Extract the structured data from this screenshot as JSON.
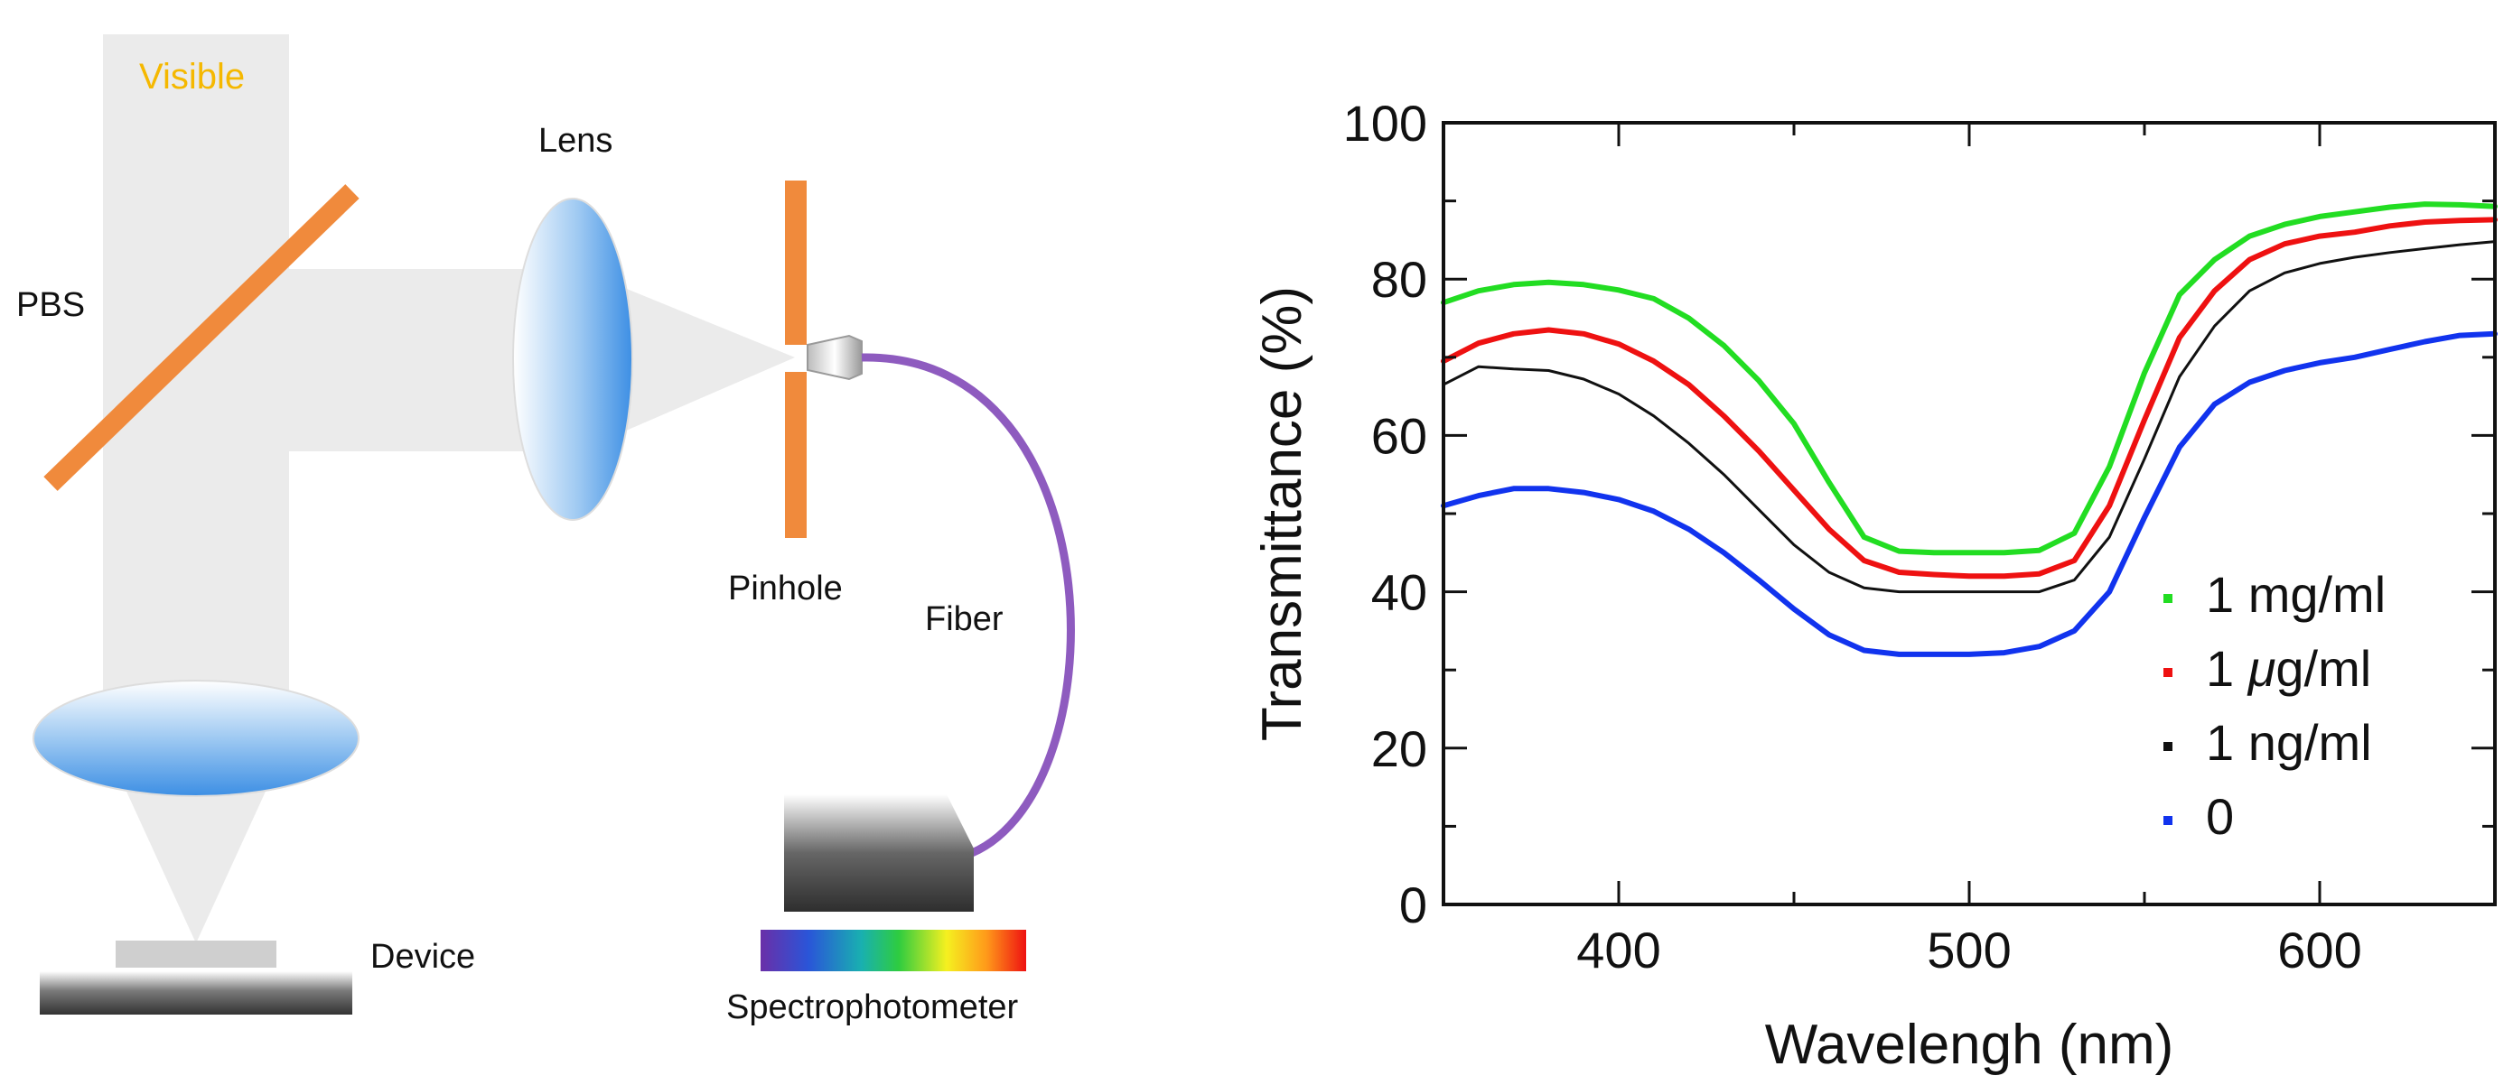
{
  "diagram": {
    "visible_label": "Visible",
    "pbs_label": "PBS",
    "lens_label": "Lens",
    "pinhole_label": "Pinhole",
    "fiber_label": "Fiber",
    "device_label": "Device",
    "spectro_label": "Spectrophotometer",
    "colors": {
      "beam": "#ebebeb",
      "pbs": "#f08a3c",
      "pinhole": "#f08a3c",
      "fiber": "#8e5bbf",
      "lens": "#4a9be8",
      "visible_text": "#f5b800"
    }
  },
  "chart_data": {
    "type": "line",
    "title": "",
    "xlabel": "Wavelengh (nm)",
    "ylabel": "Transmittance (%)",
    "xlim": [
      350,
      650
    ],
    "ylim": [
      0,
      100
    ],
    "xticks": [
      400,
      500,
      600
    ],
    "yticks": [
      0,
      20,
      40,
      60,
      80,
      100
    ],
    "x": [
      350,
      360,
      370,
      380,
      390,
      400,
      410,
      420,
      430,
      440,
      450,
      460,
      470,
      480,
      490,
      500,
      510,
      520,
      530,
      540,
      550,
      560,
      570,
      580,
      590,
      600,
      610,
      620,
      630,
      640,
      650
    ],
    "series": [
      {
        "name": "1 mg/ml",
        "label_prefix": "1 ",
        "label_greek": "",
        "label_suffix": "mg/ml",
        "color": "#22dd22",
        "stroke": 6,
        "values": [
          77,
          78.5,
          79.3,
          79.6,
          79.3,
          78.6,
          77.5,
          75,
          71.5,
          67,
          61.5,
          54,
          47,
          45.2,
          45,
          45,
          45,
          45.3,
          47.5,
          56,
          68,
          78,
          82.5,
          85.5,
          87,
          88,
          88.6,
          89.2,
          89.6,
          89.5,
          89.3
        ]
      },
      {
        "name": "1 μg/ml",
        "label_prefix": "1 ",
        "label_greek": "μ",
        "label_suffix": "g/ml",
        "color": "#ee1111",
        "stroke": 6,
        "values": [
          69.5,
          71.8,
          73,
          73.5,
          73,
          71.7,
          69.5,
          66.5,
          62.5,
          58,
          53,
          48,
          44,
          42.5,
          42.2,
          42,
          42,
          42.3,
          44,
          51,
          62,
          72.5,
          78.5,
          82.5,
          84.5,
          85.5,
          86,
          86.8,
          87.3,
          87.5,
          87.6
        ]
      },
      {
        "name": "1 ng/ml",
        "label_prefix": "1 ",
        "label_greek": "",
        "label_suffix": "ng/ml",
        "color": "#111111",
        "stroke": 3,
        "values": [
          66.5,
          68.8,
          68.5,
          68.3,
          67.2,
          65.3,
          62.5,
          59,
          55,
          50.5,
          46,
          42.5,
          40.5,
          40,
          40,
          40,
          40,
          40,
          41.5,
          47,
          57,
          67.5,
          74,
          78.5,
          80.8,
          82,
          82.8,
          83.4,
          83.9,
          84.4,
          84.8
        ]
      },
      {
        "name": "0",
        "label_prefix": "0",
        "label_greek": "",
        "label_suffix": "",
        "color": "#1133ee",
        "stroke": 6,
        "values": [
          51,
          52.3,
          53.2,
          53.2,
          52.7,
          51.8,
          50.3,
          48,
          45,
          41.5,
          37.8,
          34.5,
          32.5,
          32,
          32,
          32,
          32.2,
          33,
          35,
          40,
          49.5,
          58.5,
          64,
          66.8,
          68.3,
          69.3,
          70,
          71,
          72,
          72.8,
          73
        ]
      }
    ],
    "legend": "bottom-right"
  }
}
